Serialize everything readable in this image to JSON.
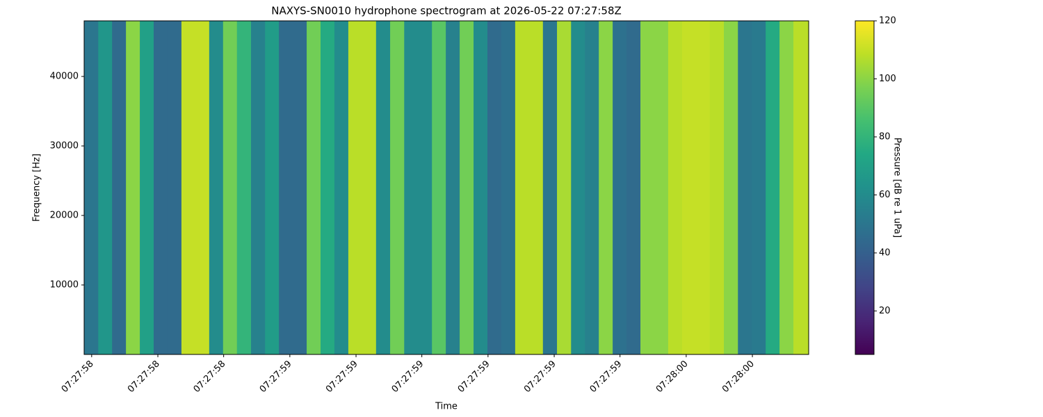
{
  "chart_data": {
    "type": "heatmap",
    "title": "NAXYS-SN0010 hydrophone spectrogram at 2026-05-22 07:27:58Z",
    "xlabel": "Time",
    "ylabel": "Frequency [Hz]",
    "colorbar_label": "Pressure [dB re 1 uPa]",
    "colormap": "viridis",
    "x": [
      58.499,
      58.534,
      58.569,
      58.604,
      58.639,
      58.674,
      58.709,
      58.744,
      58.779,
      58.814,
      58.849,
      58.884,
      58.92,
      58.955,
      58.99,
      59.025,
      59.06,
      59.095,
      59.13,
      59.165,
      59.2,
      59.235,
      59.271,
      59.306,
      59.341,
      59.376,
      59.411,
      59.446,
      59.481,
      59.516,
      59.551,
      59.586,
      59.621,
      59.656,
      59.692,
      59.727,
      59.762,
      59.797,
      59.832,
      59.867,
      59.902,
      59.937,
      59.972,
      60.007,
      60.042,
      60.077,
      60.113,
      60.148,
      60.183,
      60.218,
      60.253,
      60.288
    ],
    "values": [
      50,
      65,
      45,
      100,
      70,
      45,
      45,
      110,
      110,
      60,
      95,
      80,
      55,
      68,
      45,
      45,
      95,
      75,
      60,
      108,
      108,
      60,
      95,
      60,
      60,
      90,
      55,
      95,
      60,
      45,
      48,
      108,
      108,
      50,
      105,
      60,
      55,
      100,
      48,
      45,
      100,
      100,
      108,
      110,
      110,
      108,
      100,
      50,
      52,
      75,
      100,
      108
    ],
    "xlim": [
      58.481,
      60.309
    ],
    "xticks": [
      {
        "value": 58.5,
        "label": "07:27:58"
      },
      {
        "value": 58.667,
        "label": "07:27:58"
      },
      {
        "value": 58.833,
        "label": "07:27:58"
      },
      {
        "value": 59.0,
        "label": "07:27:59"
      },
      {
        "value": 59.167,
        "label": "07:27:59"
      },
      {
        "value": 59.333,
        "label": "07:27:59"
      },
      {
        "value": 59.5,
        "label": "07:27:59"
      },
      {
        "value": 59.667,
        "label": "07:27:59"
      },
      {
        "value": 59.833,
        "label": "07:27:59"
      },
      {
        "value": 60.0,
        "label": "07:28:00"
      },
      {
        "value": 60.167,
        "label": "07:28:00"
      }
    ],
    "ylim": [
      0,
      48000
    ],
    "yticks": [
      10000,
      20000,
      30000,
      40000
    ],
    "clim": [
      5,
      120
    ],
    "cticks": [
      20,
      40,
      60,
      80,
      100,
      120
    ]
  }
}
